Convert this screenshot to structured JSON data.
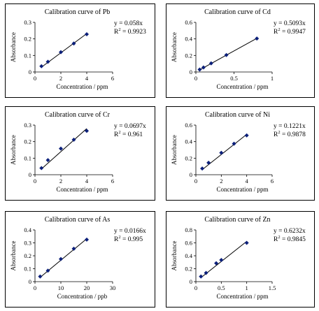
{
  "chart_data": [
    {
      "type": "scatter",
      "title": "Calibration curve of Pb",
      "xlabel": "Concentration / ppm",
      "ylabel": "Absorbance",
      "xlim": [
        0,
        6
      ],
      "ylim": [
        0,
        0.3
      ],
      "xticks": [
        "0",
        "2",
        "4",
        "6"
      ],
      "yticks": [
        "0",
        "0.1",
        "0.2",
        "0.3"
      ],
      "x": [
        0.5,
        1,
        2,
        3,
        4
      ],
      "y": [
        0.035,
        0.062,
        0.12,
        0.172,
        0.228
      ],
      "trendline": {
        "slope": 0.058
      },
      "equation": "y = 0.058x",
      "r2_label": "R",
      "r2_value": " = 0.9923",
      "marker_color": "#0b1f7a",
      "line_color": "#000000"
    },
    {
      "type": "scatter",
      "title": "Calibration curve of Cd",
      "xlabel": "Concentration / ppm",
      "ylabel": "Absorbance",
      "xlim": [
        0,
        1
      ],
      "ylim": [
        0,
        0.6
      ],
      "xticks": [
        "0",
        "0.5",
        "1"
      ],
      "yticks": [
        "0",
        "0.2",
        "0.4",
        "0.6"
      ],
      "x": [
        0.05,
        0.1,
        0.2,
        0.4,
        0.8
      ],
      "y": [
        0.03,
        0.055,
        0.105,
        0.205,
        0.405
      ],
      "trendline": {
        "slope": 0.5093
      },
      "equation": "y = 0.5093x",
      "r2_label": "R",
      "r2_value": " = 0.9947",
      "marker_color": "#0b1f7a",
      "line_color": "#000000"
    },
    {
      "type": "scatter",
      "title": "Calibration curve of Cr",
      "xlabel": "Concentration / ppm",
      "ylabel": "Absorbance",
      "xlim": [
        0,
        6
      ],
      "ylim": [
        0,
        0.3
      ],
      "xticks": [
        "0",
        "2",
        "4",
        "6"
      ],
      "yticks": [
        "0",
        "0.1",
        "0.2",
        "0.3"
      ],
      "x": [
        0.5,
        1,
        2,
        3,
        4
      ],
      "y": [
        0.04,
        0.088,
        0.158,
        0.212,
        0.265
      ],
      "trendline": {
        "slope": 0.0697
      },
      "equation": "y = 0.0697x",
      "r2_label": "R",
      "r2_value": " = 0.961",
      "marker_color": "#0b1f7a",
      "line_color": "#000000"
    },
    {
      "type": "scatter",
      "title": "Calibration curve of Ni",
      "xlabel": "Concentration / ppm",
      "ylabel": "Absorbance",
      "xlim": [
        0,
        6
      ],
      "ylim": [
        0,
        0.6
      ],
      "xticks": [
        "0",
        "2",
        "4",
        "6"
      ],
      "yticks": [
        "0",
        "0.2",
        "0.4",
        "0.6"
      ],
      "x": [
        0.5,
        1,
        2,
        3,
        4
      ],
      "y": [
        0.075,
        0.145,
        0.265,
        0.375,
        0.475
      ],
      "trendline": {
        "slope": 0.1221
      },
      "equation": "y = 0.1221x",
      "r2_label": "R",
      "r2_value": " = 0.9878",
      "marker_color": "#0b1f7a",
      "line_color": "#000000"
    },
    {
      "type": "scatter",
      "title": "Calibration curve of As",
      "xlabel": "Concentration / ppb",
      "ylabel": "Absorbance",
      "xlim": [
        0,
        30
      ],
      "ylim": [
        0,
        0.4
      ],
      "xticks": [
        "0",
        "10",
        "20",
        "30"
      ],
      "yticks": [
        "0",
        "0.1",
        "0.2",
        "0.3",
        "0.4"
      ],
      "x": [
        2,
        5,
        10,
        15,
        20
      ],
      "y": [
        0.04,
        0.085,
        0.175,
        0.255,
        0.325
      ],
      "trendline": {
        "slope": 0.0166
      },
      "equation": "y = 0.0166x",
      "r2_label": "R",
      "r2_value": " = 0.995",
      "marker_color": "#0b1f7a",
      "line_color": "#000000"
    },
    {
      "type": "scatter",
      "title": "Calibration curve of Zn",
      "xlabel": "Concentration / ppm",
      "ylabel": "Absorbance",
      "xlim": [
        0,
        1.5
      ],
      "ylim": [
        0,
        0.8
      ],
      "xticks": [
        "0",
        "0.5",
        "1",
        "1.5"
      ],
      "yticks": [
        "0",
        "0.2",
        "0.4",
        "0.6",
        "0.8"
      ],
      "x": [
        0.1,
        0.2,
        0.4,
        0.5,
        1
      ],
      "y": [
        0.08,
        0.135,
        0.285,
        0.335,
        0.6
      ],
      "trendline": {
        "slope": 0.6232
      },
      "equation": "y = 0.6232x",
      "r2_label": "R",
      "r2_value": " = 0.9845",
      "marker_color": "#0b1f7a",
      "line_color": "#000000"
    }
  ]
}
